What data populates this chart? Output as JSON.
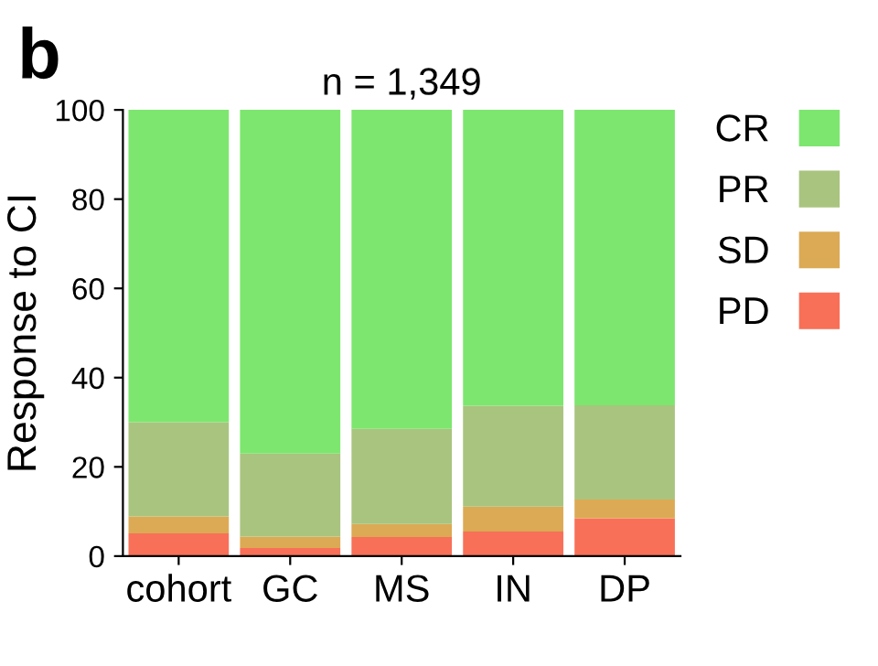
{
  "chart_data": {
    "type": "bar",
    "stacked": true,
    "title": "n = 1,349",
    "ylabel": "Response to CI",
    "annotations": [
      "b"
    ],
    "categories": [
      "cohort",
      "GC",
      "MS",
      "IN",
      "DP"
    ],
    "series": [
      {
        "name": "PD",
        "color": "#f87058",
        "values": [
          5.1,
          1.8,
          4.3,
          5.5,
          8.5
        ]
      },
      {
        "name": "SD",
        "color": "#dcaa55",
        "values": [
          3.8,
          2.6,
          2.9,
          5.6,
          4.2
        ]
      },
      {
        "name": "PR",
        "color": "#a9c47f",
        "values": [
          21.1,
          18.6,
          21.3,
          22.6,
          21.1
        ]
      },
      {
        "name": "CR",
        "color": "#7de66f",
        "values": [
          70,
          77,
          71.5,
          66.3,
          66.2
        ]
      }
    ],
    "ylim": [
      0,
      100
    ],
    "yticks": [
      0,
      20,
      40,
      60,
      80,
      100
    ],
    "grid": false,
    "legend": "right"
  }
}
